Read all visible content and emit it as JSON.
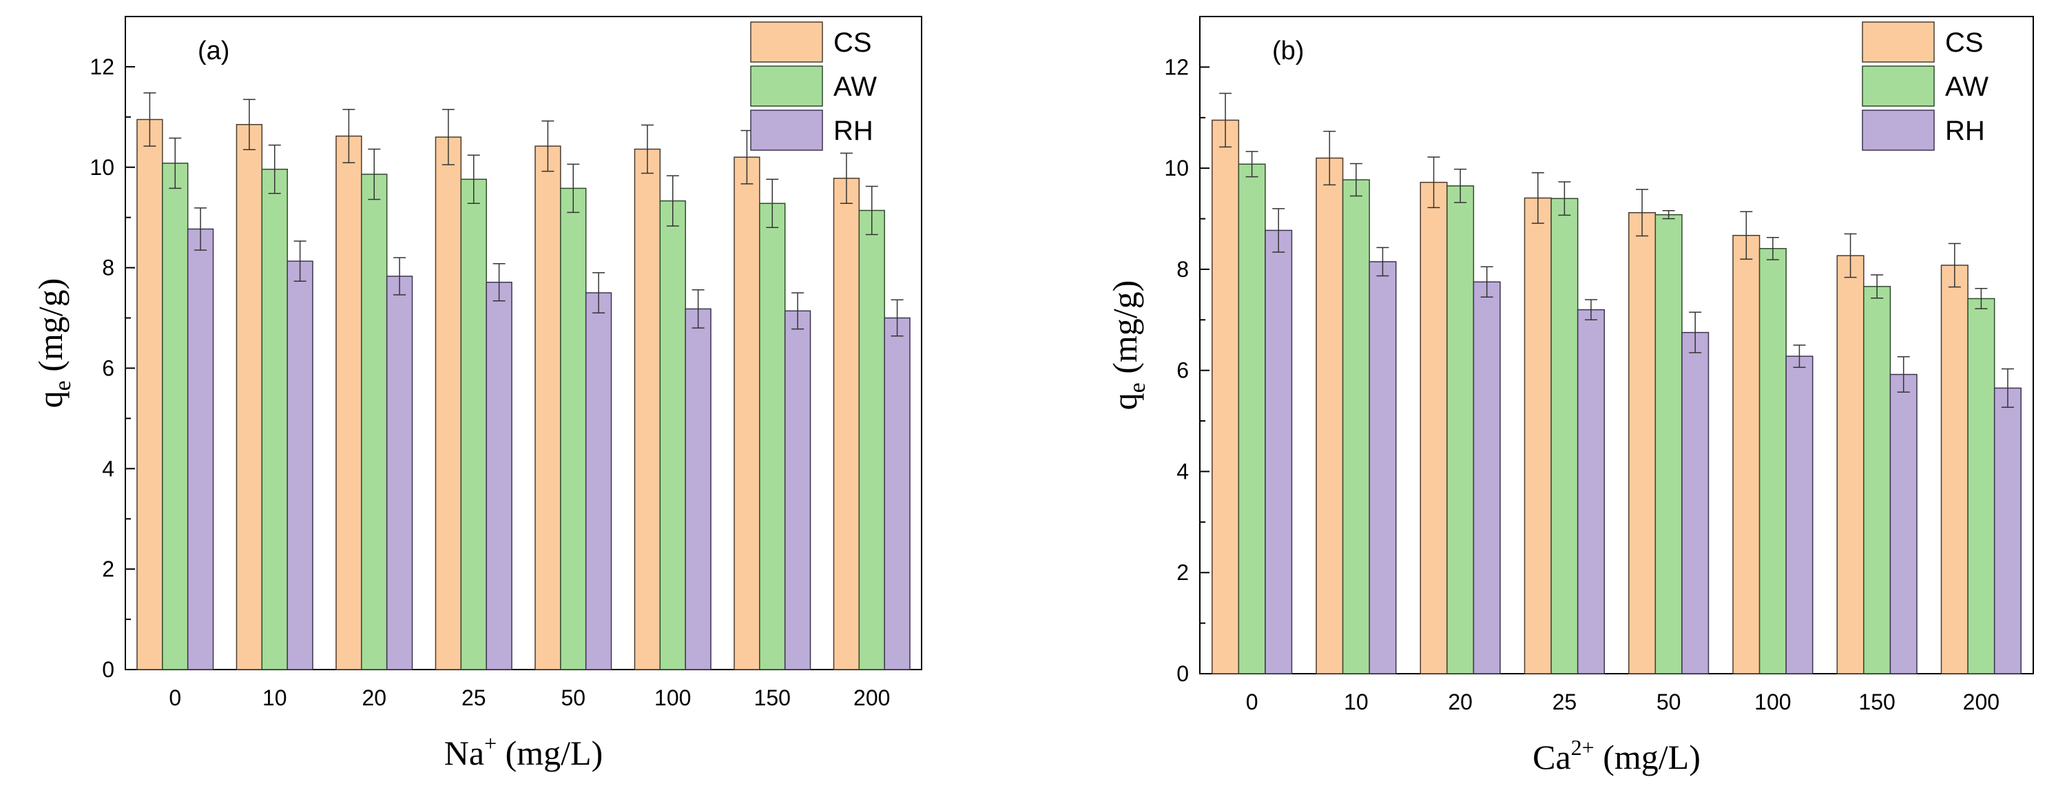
{
  "figure": {
    "series_colors": {
      "CS": {
        "fill": "#fccb9d",
        "stroke": "#4a3a2e"
      },
      "AW": {
        "fill": "#a6dc9a",
        "stroke": "#2f4a2c"
      },
      "RH": {
        "fill": "#bcacd8",
        "stroke": "#3c3450"
      }
    }
  },
  "chart_data": [
    {
      "type": "bar",
      "panel_label": "(a)",
      "xlabel_main": "Na",
      "xlabel_sup": "+",
      "xlabel_unit": " (mg/L)",
      "ylabel_main": "q",
      "ylabel_sub": "e",
      "ylabel_unit": " (mg/g)",
      "ylim": [
        0,
        13
      ],
      "yticks": [
        "0",
        "2",
        "4",
        "6",
        "8",
        "10",
        "12"
      ],
      "categories": [
        "0",
        "10",
        "20",
        "25",
        "50",
        "100",
        "150",
        "200"
      ],
      "legend_position": "top-right",
      "series": [
        {
          "name": "CS",
          "values": [
            10.95,
            10.85,
            10.62,
            10.6,
            10.42,
            10.36,
            10.2,
            9.78
          ],
          "errors": [
            0.53,
            0.5,
            0.53,
            0.55,
            0.5,
            0.48,
            0.53,
            0.5
          ]
        },
        {
          "name": "AW",
          "values": [
            10.08,
            9.96,
            9.86,
            9.76,
            9.58,
            9.33,
            9.28,
            9.14
          ],
          "errors": [
            0.5,
            0.48,
            0.5,
            0.48,
            0.48,
            0.5,
            0.48,
            0.48
          ]
        },
        {
          "name": "RH",
          "values": [
            8.77,
            8.13,
            7.83,
            7.71,
            7.5,
            7.18,
            7.14,
            7.0
          ],
          "errors": [
            0.42,
            0.4,
            0.37,
            0.37,
            0.4,
            0.38,
            0.36,
            0.36
          ]
        }
      ]
    },
    {
      "type": "bar",
      "panel_label": "(b)",
      "xlabel_main": "Ca",
      "xlabel_sup": "2+",
      "xlabel_unit": " (mg/L)",
      "ylabel_main": "q",
      "ylabel_sub": "e",
      "ylabel_unit": " (mg/g)",
      "ylim": [
        0,
        13
      ],
      "yticks": [
        "0",
        "2",
        "4",
        "6",
        "8",
        "10",
        "12"
      ],
      "categories": [
        "0",
        "10",
        "20",
        "25",
        "50",
        "100",
        "150",
        "200"
      ],
      "legend_position": "top-right",
      "series": [
        {
          "name": "CS",
          "values": [
            10.95,
            10.2,
            9.72,
            9.41,
            9.12,
            8.67,
            8.27,
            8.08
          ],
          "errors": [
            0.53,
            0.53,
            0.5,
            0.5,
            0.46,
            0.47,
            0.43,
            0.43
          ]
        },
        {
          "name": "AW",
          "values": [
            10.08,
            9.77,
            9.65,
            9.4,
            9.08,
            8.41,
            7.66,
            7.42
          ],
          "errors": [
            0.25,
            0.32,
            0.33,
            0.33,
            0.08,
            0.22,
            0.23,
            0.2
          ]
        },
        {
          "name": "RH",
          "values": [
            8.77,
            8.15,
            7.75,
            7.2,
            6.75,
            6.28,
            5.92,
            5.65
          ],
          "errors": [
            0.43,
            0.28,
            0.3,
            0.2,
            0.4,
            0.22,
            0.35,
            0.38
          ]
        }
      ]
    }
  ]
}
